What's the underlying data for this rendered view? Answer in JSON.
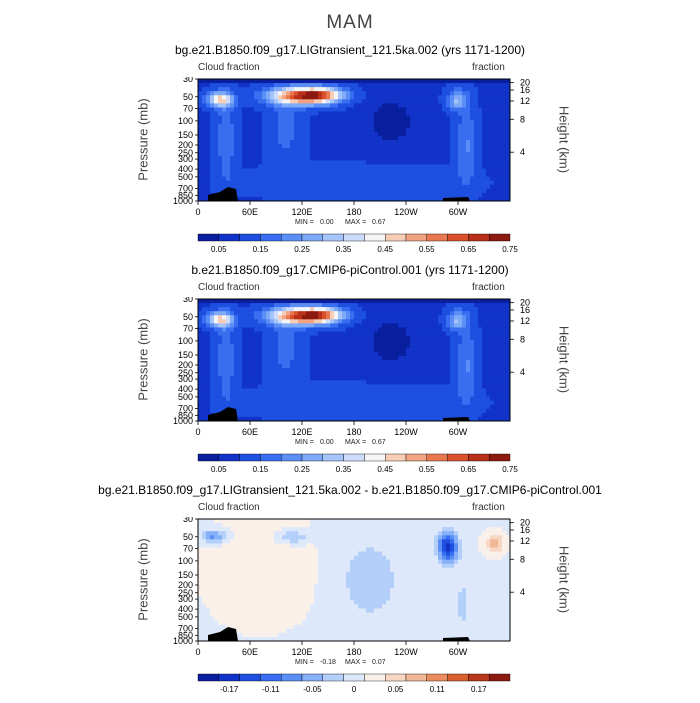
{
  "page_title": "MAM",
  "colors": {
    "cloud_scale": [
      "#0a1fa0",
      "#1133c8",
      "#1d4fe0",
      "#3a6ef0",
      "#5b8ff5",
      "#7eaaf7",
      "#a4c4fa",
      "#cddcfb",
      "#f5f5f5",
      "#f7cdb5",
      "#f2a382",
      "#e8784f",
      "#d9502b",
      "#b8301a",
      "#8c1a10"
    ],
    "diff_scale": [
      "#0a1fa0",
      "#1133c8",
      "#2050e0",
      "#3a6ef0",
      "#5b8ff5",
      "#86b0f7",
      "#b4cffa",
      "#dde8fb",
      "#faf0ea",
      "#f7d6c2",
      "#f2b796",
      "#ea8c5d",
      "#d9602f",
      "#b8381a",
      "#8c1a10"
    ]
  },
  "chart_data": [
    {
      "type": "heatmap",
      "title": "bg.e21.B1850.f09_g17.LIGtransient_121.5ka.002 (yrs 1171-1200)",
      "left_label": "Cloud fraction",
      "right_label": "fraction",
      "ylabel": "Pressure (mb)",
      "ylabel_right": "Height (km)",
      "x_ticks": [
        "0",
        "60E",
        "120E",
        "180",
        "120W",
        "60W"
      ],
      "y_ticks": [
        "30",
        "50",
        "70",
        "100",
        "150",
        "200",
        "250",
        "300",
        "400",
        "500",
        "700",
        "850",
        "1000"
      ],
      "y2_ticks": [
        "20",
        "16",
        "12",
        "8",
        "4"
      ],
      "min_label": "MIN =",
      "min": "0.00",
      "max_label": "MAX =",
      "max": "0.67",
      "colorbar_labels": [
        "0.05",
        "0.15",
        "0.25",
        "0.35",
        "0.45",
        "0.55",
        "0.65",
        "0.75"
      ]
    },
    {
      "type": "heatmap",
      "title": "b.e21.B1850.f09_g17.CMIP6-piControl.001 (yrs 1171-1200)",
      "left_label": "Cloud fraction",
      "right_label": "fraction",
      "ylabel": "Pressure (mb)",
      "ylabel_right": "Height (km)",
      "x_ticks": [
        "0",
        "60E",
        "120E",
        "180",
        "120W",
        "60W"
      ],
      "y_ticks": [
        "30",
        "50",
        "70",
        "100",
        "150",
        "200",
        "250",
        "300",
        "400",
        "500",
        "700",
        "850",
        "1000"
      ],
      "y2_ticks": [
        "20",
        "16",
        "12",
        "8",
        "4"
      ],
      "min_label": "MIN =",
      "min": "0.00",
      "max_label": "MAX =",
      "max": "0.67",
      "colorbar_labels": [
        "0.05",
        "0.15",
        "0.25",
        "0.35",
        "0.45",
        "0.55",
        "0.65",
        "0.75"
      ]
    },
    {
      "type": "heatmap",
      "title": "bg.e21.B1850.f09_g17.LIGtransient_121.5ka.002 - b.e21.B1850.f09_g17.CMIP6-piControl.001",
      "left_label": "Cloud fraction",
      "right_label": "fraction",
      "ylabel": "Pressure (mb)",
      "ylabel_right": "Height (km)",
      "x_ticks": [
        "0",
        "60E",
        "120E",
        "180",
        "120W",
        "60W"
      ],
      "y_ticks": [
        "30",
        "50",
        "70",
        "100",
        "150",
        "200",
        "250",
        "300",
        "400",
        "500",
        "700",
        "850",
        "1000"
      ],
      "y2_ticks": [
        "20",
        "16",
        "12",
        "8",
        "4"
      ],
      "min_label": "MIN =",
      "min": "-0.18",
      "max_label": "MAX =",
      "max": "0.07",
      "colorbar_labels": [
        "-0.17",
        "-0.11",
        "-0.05",
        "0",
        "0.05",
        "0.11",
        "0.17"
      ]
    }
  ]
}
